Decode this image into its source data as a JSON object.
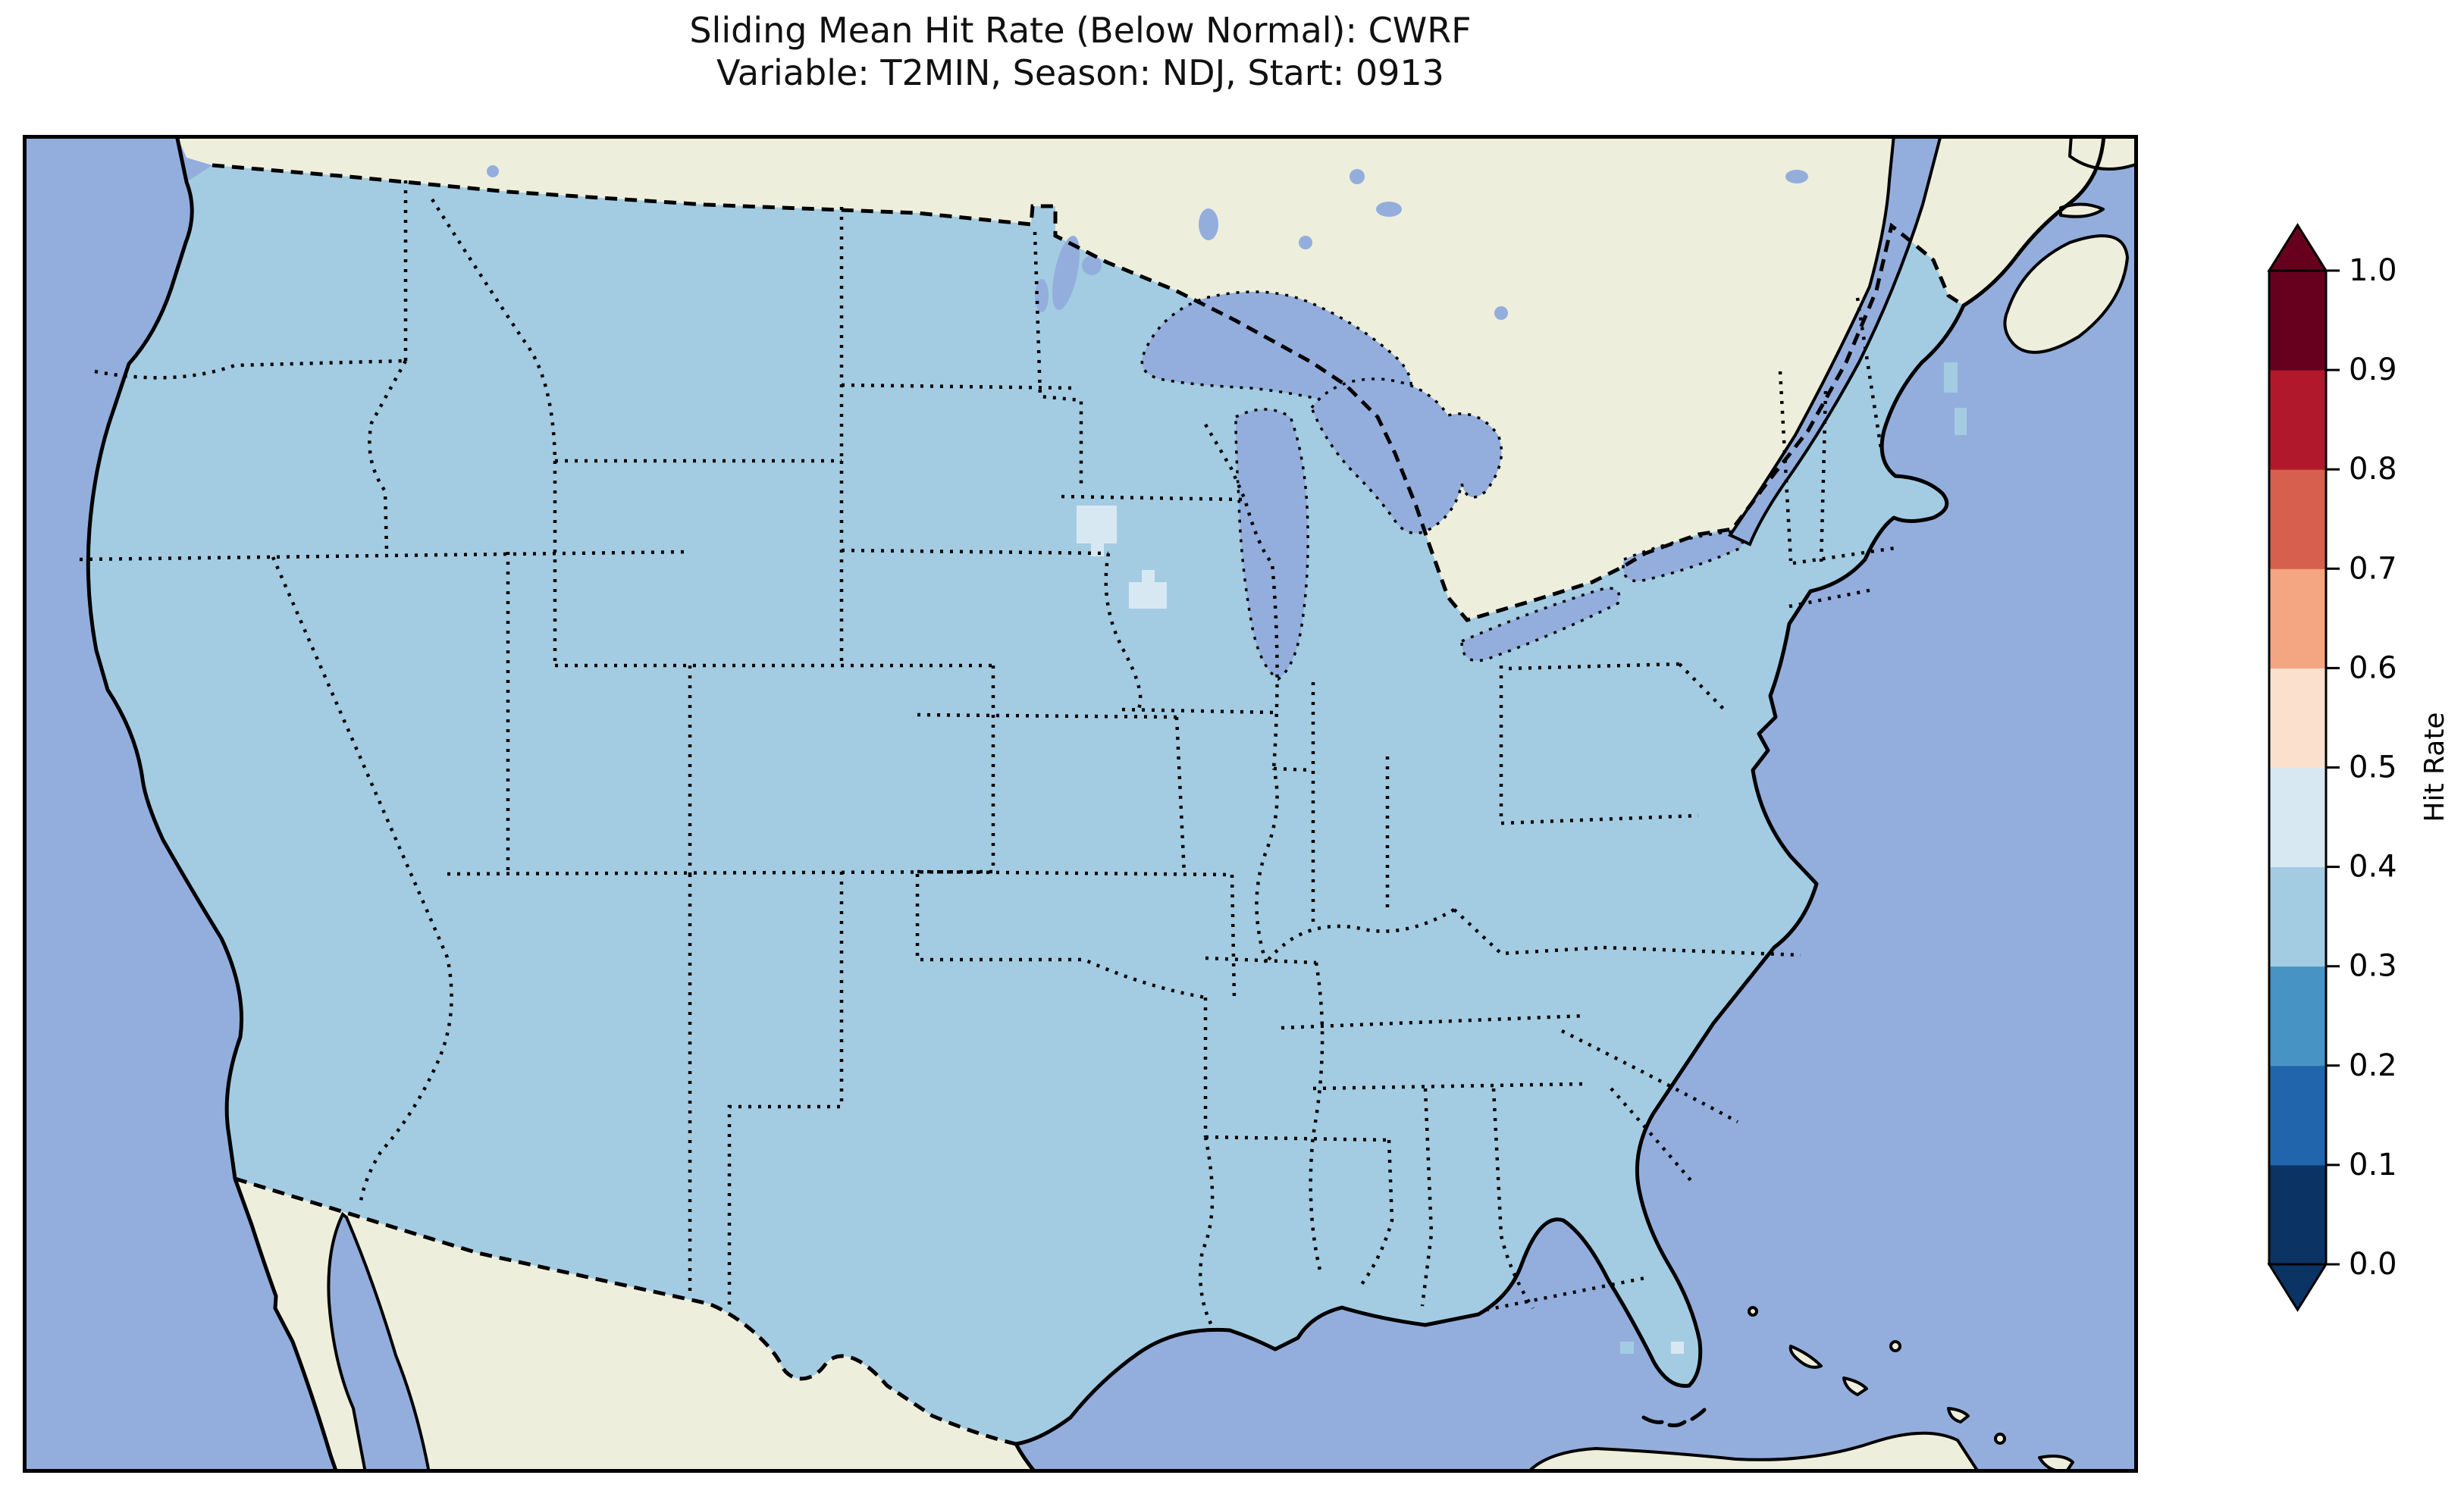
{
  "title": {
    "line1": "Sliding Mean Hit Rate (Below Normal): CWRF",
    "line2": "Variable: T2MIN, Season: NDJ, Start: 0913"
  },
  "colors": {
    "background": "#ffffff",
    "ocean": "#93aedd",
    "foreign_land": "#eeeedc",
    "us_fill_03_04": "#a3cce2",
    "cell_04_05": "#d8e8f2",
    "coastline": "#000000"
  },
  "colorbar": {
    "label": "Hit Rate",
    "tick_labels": [
      "0.0",
      "0.1",
      "0.2",
      "0.3",
      "0.4",
      "0.5",
      "0.6",
      "0.7",
      "0.8",
      "0.9",
      "1.0"
    ],
    "bins": [
      {
        "range": [
          0.0,
          0.1
        ],
        "color": "#0b3464"
      },
      {
        "range": [
          0.1,
          0.2
        ],
        "color": "#2166ac"
      },
      {
        "range": [
          0.2,
          0.3
        ],
        "color": "#4794c4"
      },
      {
        "range": [
          0.3,
          0.4
        ],
        "color": "#a3cce2"
      },
      {
        "range": [
          0.4,
          0.5
        ],
        "color": "#d8e8f2"
      },
      {
        "range": [
          0.5,
          0.6
        ],
        "color": "#fbe0cd"
      },
      {
        "range": [
          0.6,
          0.7
        ],
        "color": "#f4a582"
      },
      {
        "range": [
          0.7,
          0.8
        ],
        "color": "#d6604d"
      },
      {
        "range": [
          0.8,
          0.9
        ],
        "color": "#b2182b"
      },
      {
        "range": [
          0.9,
          1.0
        ],
        "color": "#67001f"
      }
    ],
    "extend": {
      "top_color": "#67001f",
      "bottom_color": "#0b3464"
    }
  },
  "chart_data": {
    "type": "heatmap",
    "title": "Sliding Mean Hit Rate (Below Normal): CWRF",
    "subtitle": "Variable: T2MIN, Season: NDJ, Start: 0913",
    "geography": "Contiguous United States (Lambert-conformal style map, Canada/Mexico masked in cream, ocean and Great Lakes in periwinkle blue)",
    "colorbar_label": "Hit Rate",
    "value_range": [
      0.0,
      1.0
    ],
    "bin_width": 0.1,
    "legend_position": "right vertical colorbar with extend arrows at both ends",
    "values": {
      "conus_dominant_bin": [
        0.3,
        0.4
      ],
      "notes": "Nearly the entire CONUS grid falls in the 0.3–0.4 hit-rate bin (uniform light blue).",
      "higher_cells_bin": [
        0.4,
        0.5
      ],
      "higher_cells_locations": [
        "small block of grid cells near the southern Minnesota border",
        "L-shaped cluster of cells in northwest-central Iowa"
      ],
      "offshore_cells": "three isolated light-blue data cells in the Gulf just west of the southern Florida peninsula"
    },
    "grid": false
  }
}
